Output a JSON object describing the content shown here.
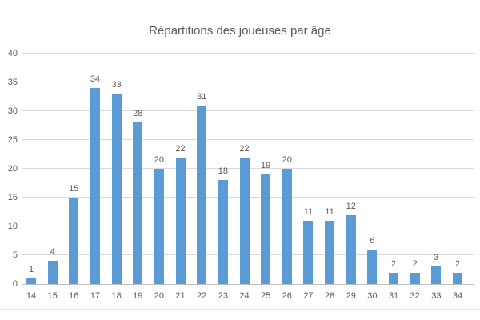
{
  "chart_data": {
    "type": "bar",
    "title": "Répartitions des joueuses par âge",
    "categories": [
      "14",
      "15",
      "16",
      "17",
      "18",
      "19",
      "20",
      "21",
      "22",
      "23",
      "24",
      "25",
      "26",
      "27",
      "28",
      "29",
      "30",
      "31",
      "32",
      "33",
      "34"
    ],
    "values": [
      1,
      4,
      15,
      34,
      33,
      28,
      20,
      22,
      31,
      18,
      22,
      19,
      20,
      11,
      11,
      12,
      6,
      2,
      2,
      3,
      2
    ],
    "xlabel": "",
    "ylabel": "",
    "ylim": [
      0,
      40
    ],
    "yticks": [
      0,
      5,
      10,
      15,
      20,
      25,
      30,
      35,
      40
    ],
    "grid": true,
    "legend": false,
    "data_labels": true,
    "colors": {
      "bar": "#5B9BD5",
      "gridline": "#D9D9D9",
      "axis_line": "#BFBFBF",
      "label_text": "#595959",
      "title_text": "#595959",
      "background": "#FFFFFF"
    }
  }
}
